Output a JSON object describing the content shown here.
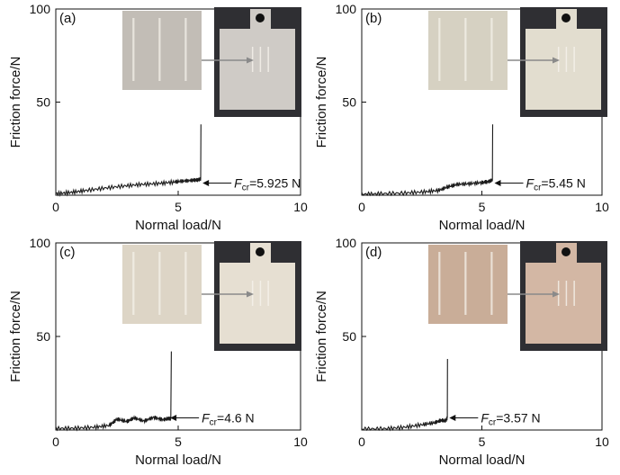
{
  "figure": {
    "x_axis_label": "Normal load/N",
    "y_axis_label": "Friction force/N",
    "fcr_symbol": "F",
    "fcr_subscript": "cr",
    "colors": {
      "curve": "#1a1a1a",
      "arrow_inset": "#8a8a8a",
      "specimen_background": "#2f2f33"
    }
  },
  "chart_data": [
    {
      "type": "line",
      "panel_label": "(a)",
      "xlabel": "Normal load/N",
      "ylabel": "Friction force/N",
      "xlim": [
        0,
        10
      ],
      "ylim": [
        0,
        100
      ],
      "xticks": [
        "0",
        "5",
        "10"
      ],
      "yticks": [
        "50",
        "100"
      ],
      "series": [
        {
          "name": "friction",
          "x": [
            0,
            0.6,
            1.2,
            2,
            2.8,
            3.5,
            4.2,
            4.8,
            5.2,
            5.6,
            5.8,
            5.92,
            5.93
          ],
          "y": [
            0.8,
            1.5,
            2.5,
            3.8,
            5,
            5.8,
            6.3,
            7.0,
            7.6,
            8.0,
            8.2,
            8.8,
            38
          ]
        }
      ],
      "fcr_value": "=5.925 N",
      "critical_load": 5.925,
      "specimen_tint": "#cfcbc6",
      "closeup_tint": "#c2bdb6"
    },
    {
      "type": "line",
      "panel_label": "(b)",
      "xlabel": "Normal load/N",
      "ylabel": "Friction force/N",
      "xlim": [
        0,
        10
      ],
      "ylim": [
        0,
        100
      ],
      "xticks": [
        "0",
        "5",
        "10"
      ],
      "yticks": [
        "50",
        "100"
      ],
      "series": [
        {
          "name": "friction",
          "x": [
            0,
            0.8,
            1.8,
            2.6,
            3.2,
            3.6,
            4.0,
            4.5,
            5.0,
            5.3,
            5.44,
            5.45
          ],
          "y": [
            0.5,
            0.8,
            1.2,
            1.8,
            2.6,
            4.5,
            5.8,
            6.2,
            6.8,
            7.4,
            8.2,
            38
          ]
        }
      ],
      "fcr_value": "=5.45 N",
      "critical_load": 5.45,
      "specimen_tint": "#e2ddcf",
      "closeup_tint": "#d6d1c2"
    },
    {
      "type": "line",
      "panel_label": "(c)",
      "xlabel": "Normal load/N",
      "ylabel": "Friction force/N",
      "xlim": [
        0,
        10
      ],
      "ylim": [
        0,
        100
      ],
      "xticks": [
        "0",
        "5",
        "10"
      ],
      "yticks": [
        "50",
        "100"
      ],
      "series": [
        {
          "name": "friction",
          "x": [
            0,
            0.8,
            1.6,
            2.2,
            2.5,
            2.9,
            3.2,
            3.6,
            4.0,
            4.4,
            4.6,
            4.7,
            4.72
          ],
          "y": [
            0.8,
            1.0,
            1.5,
            2.5,
            5.8,
            4.5,
            6.5,
            4.8,
            6.8,
            5.5,
            6.2,
            6.0,
            42
          ]
        }
      ],
      "fcr_value": "=4.6 N",
      "critical_load": 4.6,
      "specimen_tint": "#e6dfd2",
      "closeup_tint": "#ddd5c6"
    },
    {
      "type": "line",
      "panel_label": "(d)",
      "xlabel": "Normal load/N",
      "ylabel": "Friction force/N",
      "xlim": [
        0,
        10
      ],
      "ylim": [
        0,
        100
      ],
      "xticks": [
        "0",
        "5",
        "10"
      ],
      "yticks": [
        "50",
        "100"
      ],
      "series": [
        {
          "name": "friction",
          "x": [
            0,
            1.0,
            1.8,
            2.5,
            3.0,
            3.3,
            3.5,
            3.56,
            3.57
          ],
          "y": [
            0.5,
            0.7,
            1.5,
            2.8,
            3.8,
            5.2,
            5.0,
            6.5,
            38
          ]
        }
      ],
      "fcr_value": "=3.57 N",
      "critical_load": 3.57,
      "specimen_tint": "#d3b7a4",
      "closeup_tint": "#c9ad98"
    }
  ]
}
